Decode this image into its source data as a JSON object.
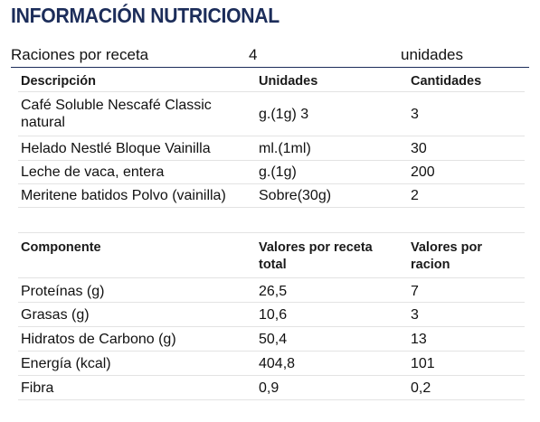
{
  "title": "INFORMACIÓN NUTRICIONAL",
  "servings": {
    "label": "Raciones por receta",
    "value": "4",
    "unit": "unidades"
  },
  "ingredients": {
    "headers": [
      "Descripción",
      "Unidades",
      "Cantidades"
    ],
    "rows": [
      [
        "Café Soluble Nescafé Classic natural",
        "g.(1g) 3",
        "3"
      ],
      [
        "Helado Nestlé Bloque Vainilla",
        "ml.(1ml)",
        "30"
      ],
      [
        "Leche de vaca, entera",
        "g.(1g)",
        "200"
      ],
      [
        "Meritene batidos Polvo (vainilla)",
        "Sobre(30g)",
        "2"
      ]
    ]
  },
  "nutrition": {
    "headers": [
      "Componente",
      "Valores por receta total",
      "Valores por racion"
    ],
    "rows": [
      [
        "Proteínas (g)",
        "26,5",
        "7"
      ],
      [
        "Grasas (g)",
        "10,6",
        "3"
      ],
      [
        "Hidratos de Carbono (g)",
        "50,4",
        "13"
      ],
      [
        "Energía (kcal)",
        "404,8",
        "101"
      ],
      [
        "Fibra",
        "0,9",
        "0,2"
      ]
    ]
  }
}
